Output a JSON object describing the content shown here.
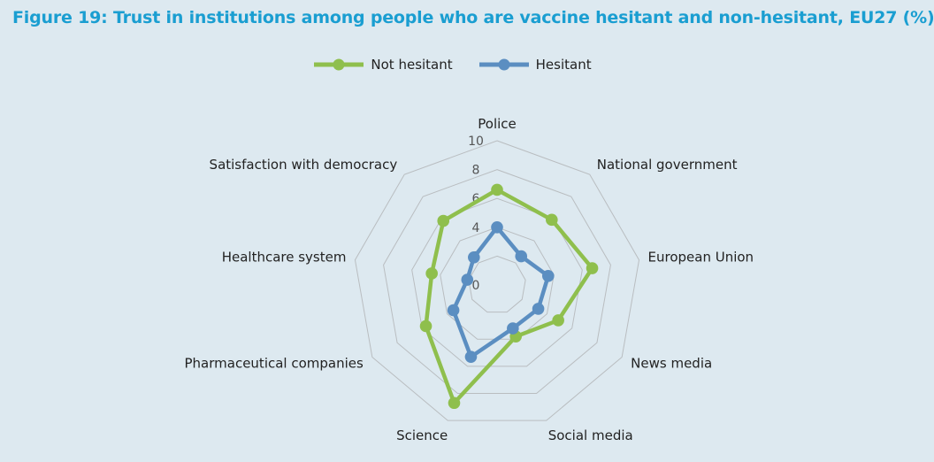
{
  "title": "Figure 19: Trust in institutions among people who are vaccine hesitant and non-hesitant, EU27 (%)",
  "chart_data": {
    "type": "radar",
    "categories": [
      "Police",
      "National government",
      "European Union",
      "News media",
      "Social media",
      "Science",
      "Pharmaceutical companies",
      "Healthcare system",
      "Satisfaction with democracy"
    ],
    "rlim": [
      0,
      10
    ],
    "ticks": [
      "0",
      "2",
      "4",
      "6",
      "8",
      "10"
    ],
    "grid": true,
    "legend_position": "top",
    "series": [
      {
        "name": "Not hesitant",
        "color": "#8fbf4d",
        "values": [
          6.6,
          5.9,
          6.7,
          4.9,
          3.8,
          8.7,
          5.7,
          4.6,
          5.8
        ]
      },
      {
        "name": "Hesitant",
        "color": "#5b8ec1",
        "values": [
          4.0,
          2.6,
          3.6,
          3.3,
          3.2,
          5.3,
          3.5,
          2.1,
          2.5
        ]
      }
    ]
  }
}
